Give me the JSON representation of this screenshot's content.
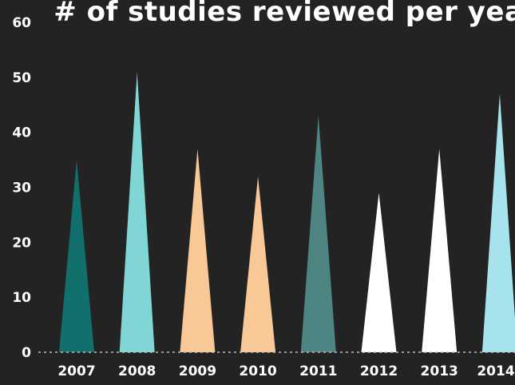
{
  "chart_data": {
    "type": "bar",
    "title": "# of studies reviewed per year",
    "xlabel": "",
    "ylabel": "",
    "categories": [
      "2007",
      "2008",
      "2009",
      "2010",
      "2011",
      "2012",
      "2013",
      "2014"
    ],
    "values": [
      35,
      51,
      37,
      32,
      43,
      29,
      37,
      47
    ],
    "ylim": [
      0,
      60
    ],
    "yticks": [
      "0",
      "10",
      "20",
      "30",
      "40",
      "50",
      "60"
    ],
    "bar_colors": [
      "#11706c",
      "#7fd6d4",
      "#f8c896",
      "#f8c896",
      "#4e8583",
      "#ffffff",
      "#ffffff",
      "#a7e3ec"
    ],
    "background": "#232323",
    "baseline_style": "dotted",
    "grid": false,
    "legend": "none"
  }
}
